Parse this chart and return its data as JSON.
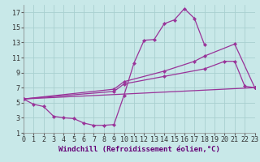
{
  "background_color": "#c8e8e8",
  "grid_color": "#a8d0d0",
  "line_color": "#993399",
  "xlabel": "Windchill (Refroidissement éolien,°C)",
  "xlabel_fontsize": 6.5,
  "xlim": [
    0,
    23
  ],
  "ylim": [
    1,
    18
  ],
  "xticks": [
    0,
    1,
    2,
    3,
    4,
    5,
    6,
    7,
    8,
    9,
    10,
    11,
    12,
    13,
    14,
    15,
    16,
    17,
    18,
    19,
    20,
    21,
    22,
    23
  ],
  "yticks": [
    1,
    3,
    5,
    7,
    9,
    11,
    13,
    15,
    17
  ],
  "tick_fontsize": 6,
  "curve1_x": [
    0,
    1,
    2,
    3,
    4,
    5,
    6,
    7,
    8,
    9,
    10,
    11,
    12,
    13,
    14,
    15,
    16,
    17,
    18
  ],
  "curve1_y": [
    5.5,
    4.8,
    4.5,
    3.2,
    3.0,
    2.9,
    2.3,
    2.0,
    2.0,
    2.1,
    6.0,
    10.3,
    13.3,
    13.4,
    15.5,
    16.0,
    17.5,
    16.2,
    12.7
  ],
  "curve2_x": [
    0,
    23
  ],
  "curve2_y": [
    5.5,
    7.0
  ],
  "curve3_x": [
    0,
    9,
    10,
    14,
    18,
    20,
    21,
    22,
    23
  ],
  "curve3_y": [
    5.5,
    6.5,
    7.5,
    8.5,
    9.5,
    10.5,
    10.5,
    7.2,
    7.0
  ],
  "curve4_x": [
    0,
    9,
    10,
    14,
    17,
    18,
    21,
    23
  ],
  "curve4_y": [
    5.5,
    6.8,
    7.8,
    9.2,
    10.5,
    11.2,
    12.8,
    7.0
  ]
}
